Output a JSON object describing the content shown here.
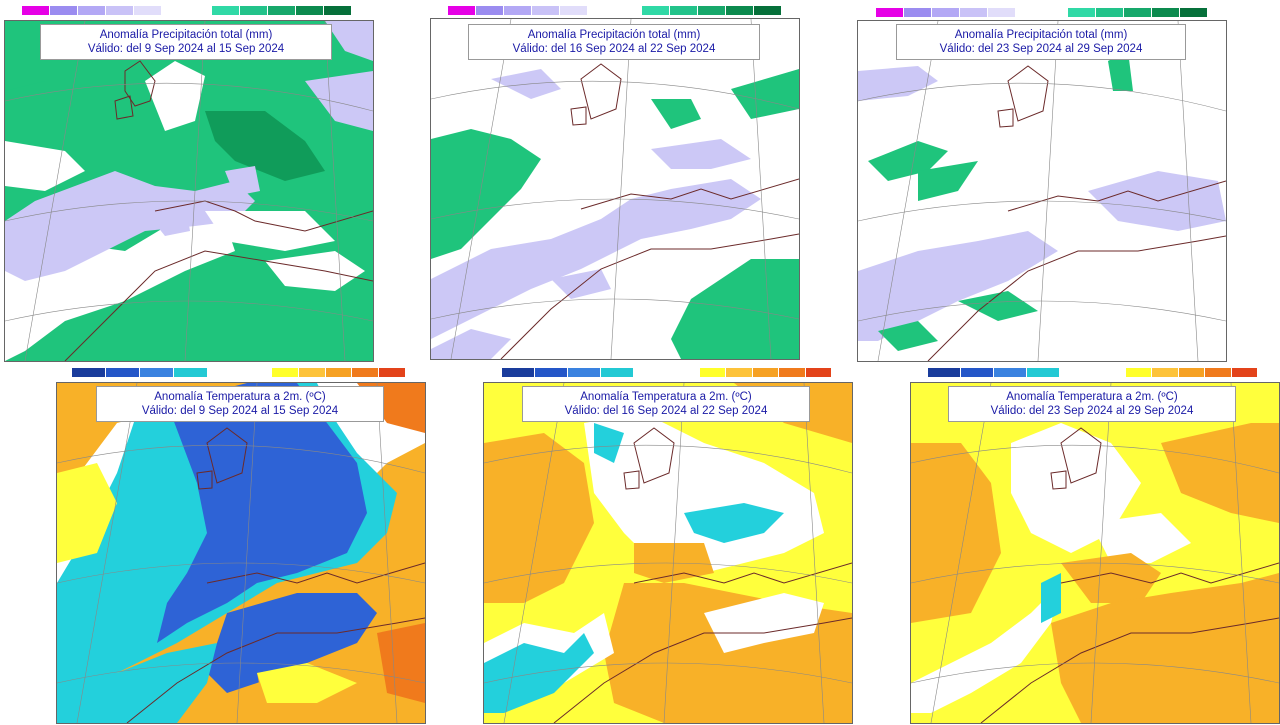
{
  "precip_colors": {
    "neg": [
      "#e600e6",
      "#9b8cf0",
      "#b3a8f5",
      "#c9c2f7",
      "#e1ddfa"
    ],
    "pos": [
      "#30d9a6",
      "#22c38a",
      "#17a86b",
      "#0c8a4e",
      "#06703a"
    ],
    "dry_fill": "#ccc8f6",
    "wet_fill": "#1fc47c",
    "wet_dark": "#109c5a"
  },
  "temp_colors": {
    "cold": [
      "#1a3c9c",
      "#2456c8",
      "#3a82e0",
      "#23c9d4"
    ],
    "warm": [
      "#ffff2a",
      "#fdc33a",
      "#f6a123",
      "#f07a1c",
      "#e3431a"
    ],
    "cold_fill": "#2e63d6",
    "cool_fill": "#23d0dc",
    "yellow_fill": "#ffff3c",
    "orange_fill": "#f8b128",
    "deep_orange": "#f07a1c"
  },
  "panels": [
    {
      "id": "precip-week1",
      "title": "Anomalía Precipitación total (mm)",
      "valid": "Válido: del 9 Sep 2024 al 15 Sep 2024"
    },
    {
      "id": "precip-week2",
      "title": "Anomalía Precipitación total (mm)",
      "valid": "Válido: del 16 Sep 2024 al 22 Sep 2024"
    },
    {
      "id": "precip-week3",
      "title": "Anomalía Precipitación total (mm)",
      "valid": "Válido: del 23 Sep 2024 al 29 Sep 2024"
    },
    {
      "id": "temp-week1",
      "title": "Anomalía Temperatura a 2m. (ºC)",
      "valid": "Válido: del 9 Sep 2024 al 15 Sep 2024"
    },
    {
      "id": "temp-week2",
      "title": "Anomalía Temperatura a 2m. (ºC)",
      "valid": "Válido: del 16 Sep 2024 al 22 Sep 2024"
    },
    {
      "id": "temp-week3",
      "title": "Anomalía Temperatura a 2m. (ºC)",
      "valid": "Válido: del 23 Sep 2024 al 29 Sep 2024"
    }
  ]
}
